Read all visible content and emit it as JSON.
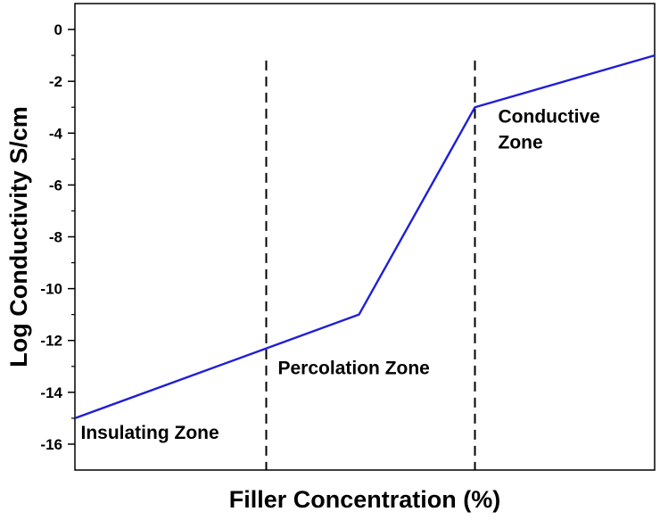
{
  "chart_data": {
    "type": "line",
    "title": "",
    "xlabel": "Filler Concentration (%)",
    "ylabel": "Log Conductivity S/cm",
    "xlim": [
      0,
      100
    ],
    "ylim": [
      -17,
      1
    ],
    "yticks": [
      0,
      -2,
      -4,
      -6,
      -8,
      -10,
      -12,
      -14,
      -16
    ],
    "ytick_labels": [
      "0",
      "-2",
      "-4",
      "-6",
      "-8",
      "-10",
      "-12",
      "-14",
      "-16"
    ],
    "show_xticks": false,
    "grid": false,
    "legend": "none",
    "series": [
      {
        "color": "#1f1fd6",
        "x": [
          0,
          49,
          69,
          100
        ],
        "y": [
          -15,
          -11,
          -3,
          -1
        ]
      }
    ],
    "vlines": [
      {
        "x": 33,
        "y_top": -1.2,
        "color": "#000000",
        "style": "dashed"
      },
      {
        "x": 69,
        "y_top": -1.2,
        "color": "#000000",
        "style": "dashed"
      }
    ],
    "annotations": [
      {
        "text": "Insulating Zone",
        "x": 1,
        "y": -15.8,
        "lines": [
          "Insulating Zone"
        ]
      },
      {
        "text": "Percolation Zone",
        "x": 35,
        "y": -13.3,
        "lines": [
          "Percolation Zone"
        ]
      },
      {
        "text": "Conductive Zone",
        "x": 73,
        "y": -3.6,
        "lines": [
          "Conductive",
          "Zone"
        ]
      }
    ]
  }
}
